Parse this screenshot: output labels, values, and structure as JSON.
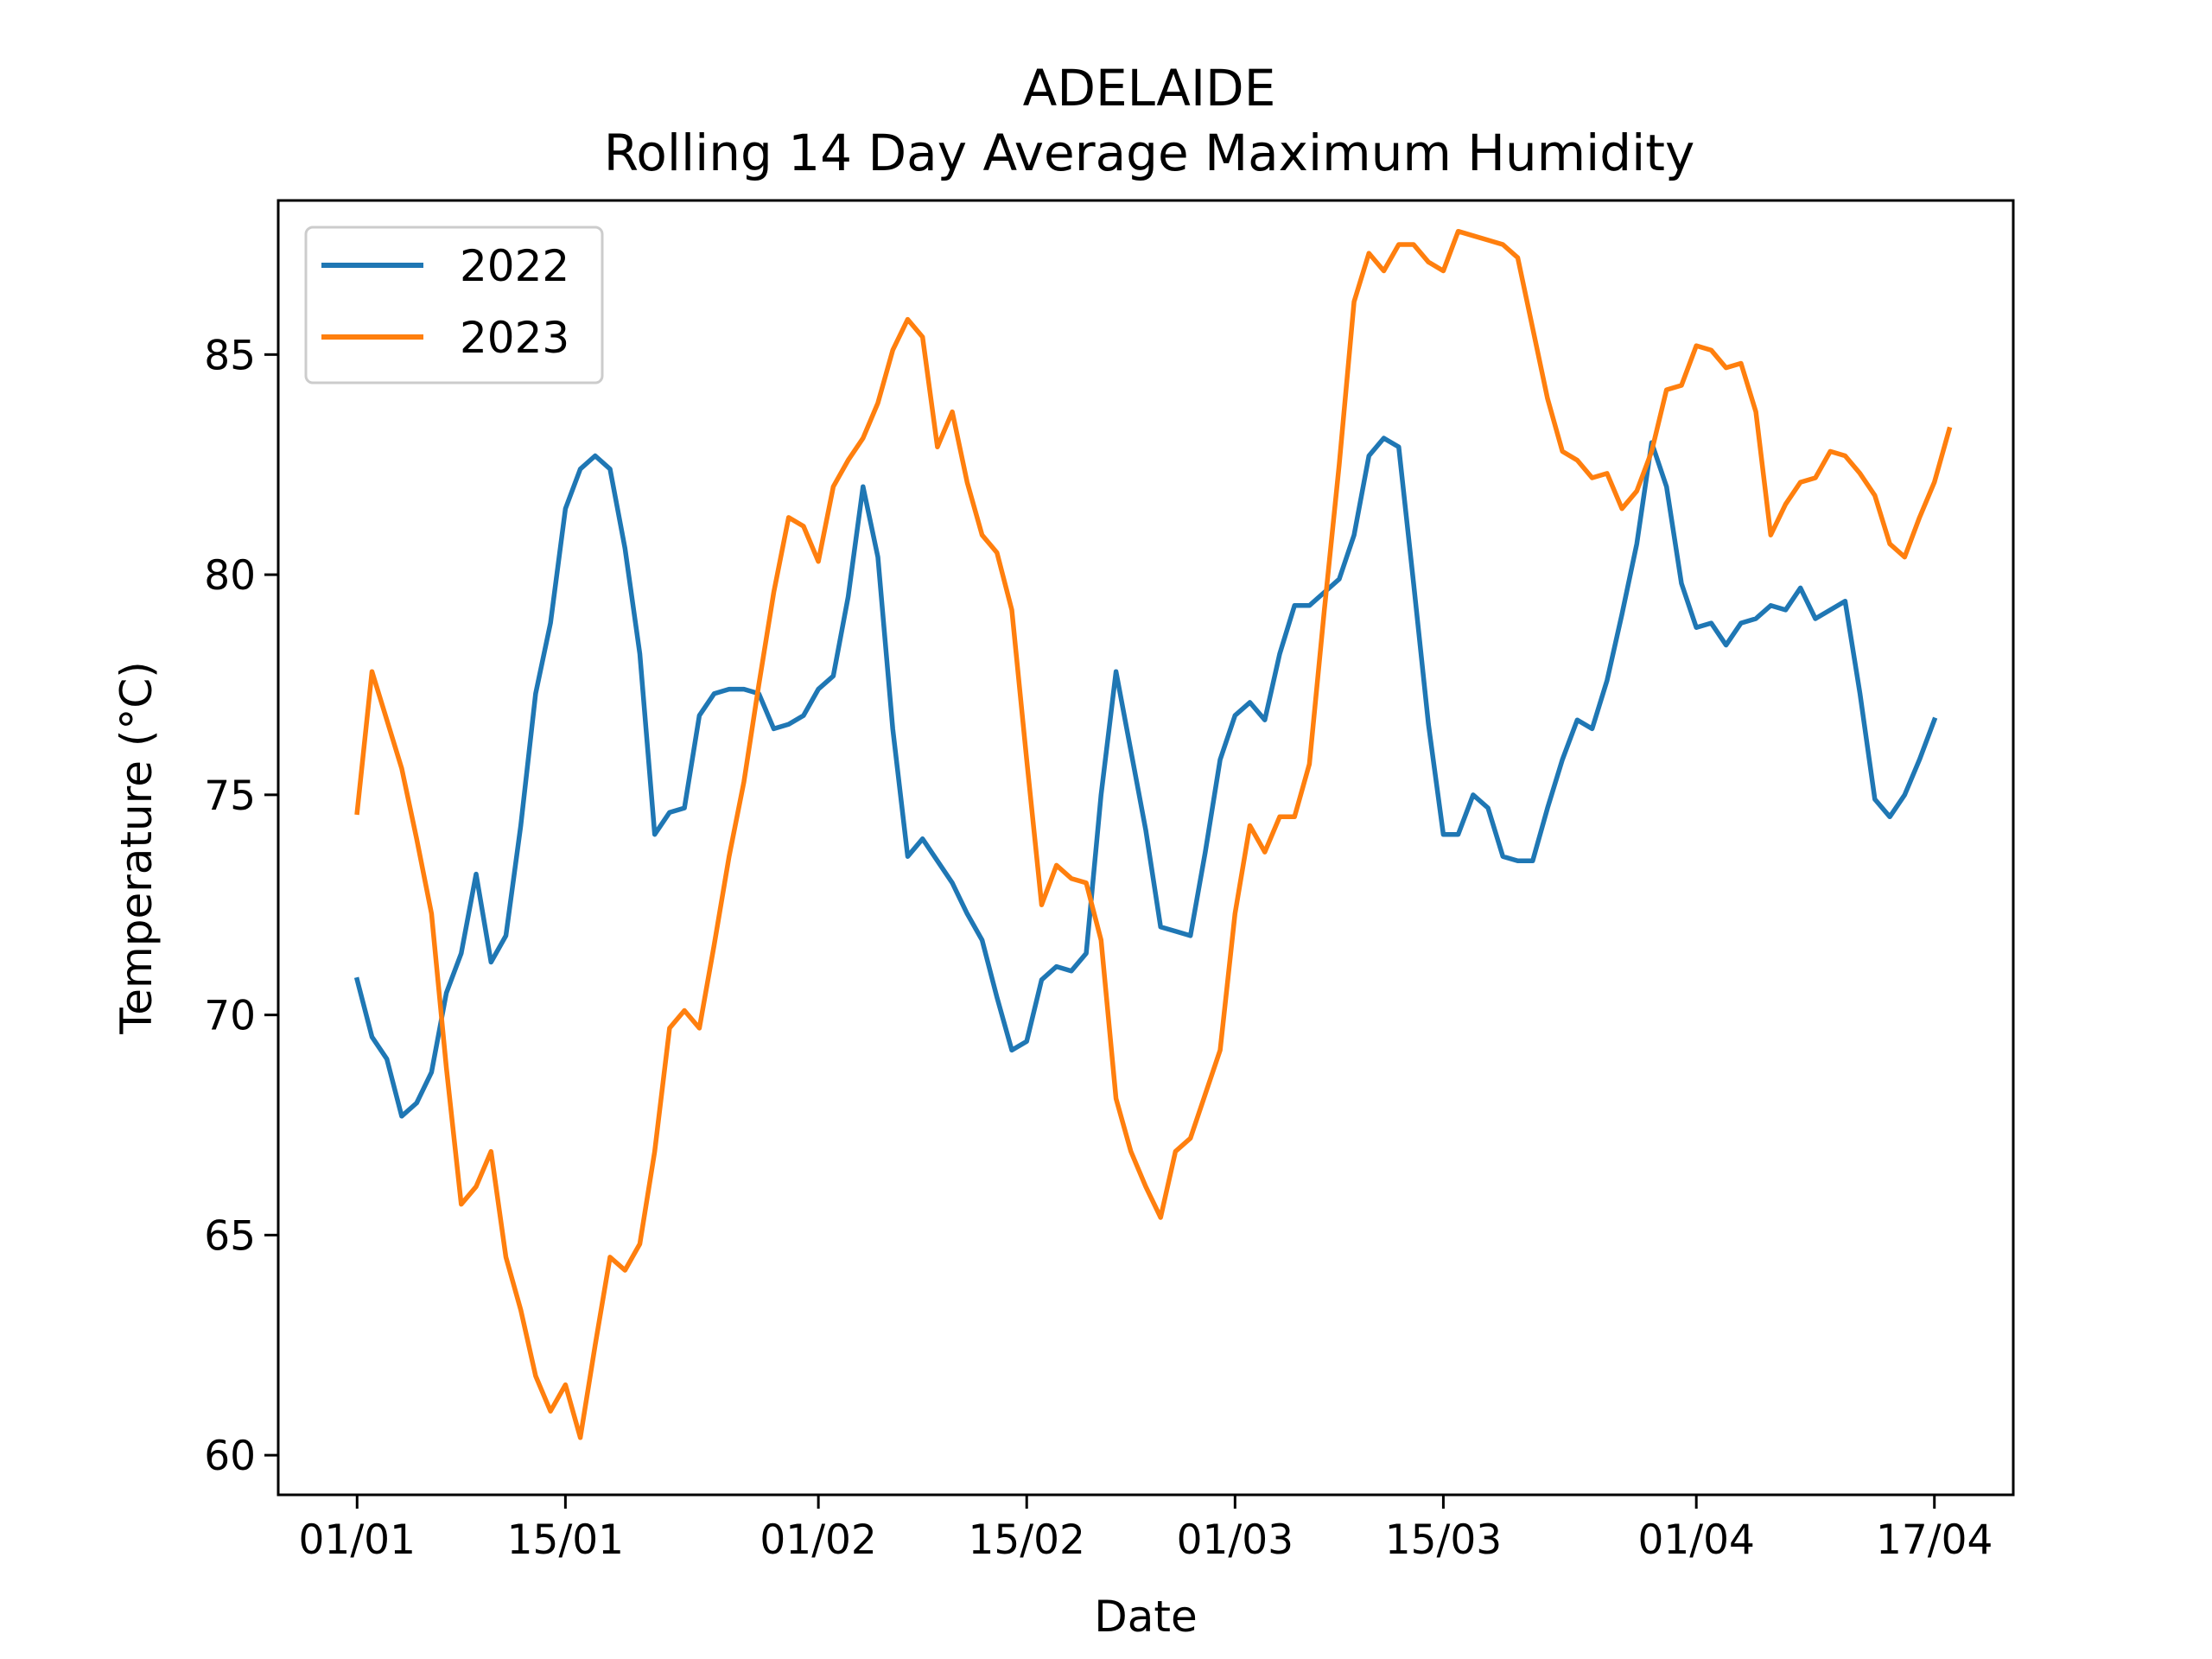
{
  "chart_data": {
    "type": "line",
    "title": "ADELAIDE",
    "subtitle": "Rolling 14 Day Average Maximum Humidity",
    "xlabel": "Date",
    "ylabel": "Temperature (°C)",
    "x_start": "01/01",
    "x_step_days": 1,
    "xticks": [
      {
        "day": 0,
        "label": "01/01"
      },
      {
        "day": 14,
        "label": "15/01"
      },
      {
        "day": 31,
        "label": "01/02"
      },
      {
        "day": 45,
        "label": "15/02"
      },
      {
        "day": 59,
        "label": "01/03"
      },
      {
        "day": 73,
        "label": "15/03"
      },
      {
        "day": 90,
        "label": "01/04"
      },
      {
        "day": 106,
        "label": "17/04"
      }
    ],
    "yticks": [
      60,
      65,
      70,
      75,
      80,
      85
    ],
    "xlim": [
      -5.3,
      111.3
    ],
    "ylim": [
      59.1,
      88.5
    ],
    "grid": false,
    "legend_position": "top-left",
    "series": [
      {
        "name": "2022",
        "color": "#1f77b4",
        "values": [
          70.8,
          69.5,
          69.0,
          67.7,
          68.0,
          68.7,
          70.5,
          71.4,
          73.2,
          71.2,
          71.8,
          74.3,
          77.3,
          78.9,
          81.5,
          82.4,
          82.7,
          82.4,
          80.6,
          78.2,
          74.1,
          74.6,
          74.7,
          76.8,
          77.3,
          77.4,
          77.4,
          77.3,
          76.5,
          76.6,
          76.8,
          77.4,
          77.7,
          79.5,
          82.0,
          80.4,
          76.5,
          73.6,
          74.0,
          73.5,
          73.0,
          72.3,
          71.7,
          70.4,
          69.2,
          69.4,
          70.8,
          71.1,
          71.0,
          71.4,
          75.0,
          77.8,
          76.0,
          74.2,
          72.0,
          71.9,
          71.8,
          73.7,
          75.8,
          76.8,
          77.1,
          76.7,
          78.2,
          79.3,
          79.3,
          79.6,
          79.9,
          80.9,
          82.7,
          83.1,
          82.9,
          79.8,
          76.6,
          74.1,
          74.1,
          75.0,
          74.7,
          73.6,
          73.5,
          73.5,
          74.7,
          75.8,
          76.7,
          76.5,
          77.6,
          79.1,
          80.7,
          83.0,
          82.0,
          79.8,
          78.8,
          78.9,
          78.4,
          78.9,
          79.0,
          79.3,
          79.2,
          79.7,
          79.0,
          79.2,
          79.4,
          77.3,
          74.9,
          74.5,
          75.0,
          75.8,
          76.7
        ]
      },
      {
        "name": "2023",
        "color": "#ff7f0e",
        "values": [
          74.6,
          77.8,
          76.7,
          75.6,
          74.0,
          72.3,
          68.8,
          65.7,
          66.1,
          66.9,
          64.5,
          63.3,
          61.8,
          61.0,
          61.6,
          60.4,
          62.5,
          64.5,
          64.2,
          64.8,
          66.9,
          69.7,
          70.1,
          69.7,
          71.6,
          73.6,
          75.3,
          77.5,
          79.6,
          81.3,
          81.1,
          80.3,
          82.0,
          82.6,
          83.1,
          83.9,
          85.1,
          85.8,
          85.4,
          82.9,
          83.7,
          82.1,
          80.9,
          80.5,
          79.2,
          75.8,
          72.5,
          73.4,
          73.1,
          73.0,
          71.7,
          68.1,
          66.9,
          66.1,
          65.4,
          66.9,
          67.2,
          68.2,
          69.2,
          72.3,
          74.3,
          73.7,
          74.5,
          74.5,
          75.7,
          79.2,
          82.5,
          86.2,
          87.3,
          86.9,
          87.5,
          87.5,
          87.1,
          86.9,
          87.8,
          87.7,
          87.6,
          87.5,
          87.2,
          85.6,
          84.0,
          82.8,
          82.6,
          82.2,
          82.3,
          81.5,
          81.9,
          82.8,
          84.2,
          84.3,
          85.2,
          85.1,
          84.7,
          84.8,
          83.7,
          80.9,
          81.6,
          82.1,
          82.2,
          82.8,
          82.7,
          82.3,
          81.8,
          80.7,
          80.4,
          81.3,
          82.1,
          83.3
        ]
      }
    ]
  }
}
